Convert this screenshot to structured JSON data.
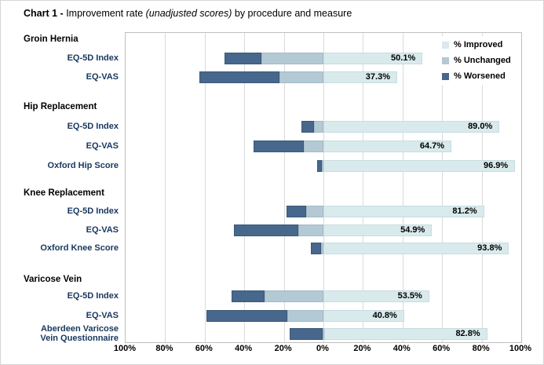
{
  "title": {
    "prefix": "Chart 1 - ",
    "main": "Improvement rate ",
    "italic": "(unadjusted scores)",
    "suffix": " by procedure and measure"
  },
  "legend": {
    "items": [
      {
        "label": "% Improved",
        "color": "#d9eaec"
      },
      {
        "label": "% Unchanged",
        "color": "#b3c9d4"
      },
      {
        "label": "% Worsened",
        "color": "#47688c"
      }
    ]
  },
  "colors": {
    "improved": "#d9eaec",
    "unchanged": "#b3c9d4",
    "worsened": "#47688c",
    "gridline": "#dadada",
    "plot_border": "#bfbfbf",
    "measure_label": "#17375e"
  },
  "axis": {
    "ticks": [
      "100%",
      "80%",
      "60%",
      "40%",
      "20%",
      "0%",
      "20%",
      "40%",
      "60%",
      "80%",
      "100%"
    ]
  },
  "chart_data": {
    "type": "bar",
    "orientation": "horizontal-diverging",
    "title": "Chart 1 - Improvement rate (unadjusted scores) by procedure and measure",
    "xlabel": "",
    "ylabel": "",
    "axis_range_pct": [
      -100,
      100
    ],
    "grid": true,
    "legend_position": "top-right",
    "legend": [
      "% Improved",
      "% Unchanged",
      "% Worsened"
    ],
    "note": "Worsened and Unchanged extend left of 0; Improved extends right of 0. Improved values are labelled on the chart; Unchanged/Worsened estimated from bar lengths.",
    "groups": [
      {
        "name": "Groin Hernia",
        "rows": [
          {
            "label": "EQ-5D Index",
            "improved": 50.1,
            "unchanged": 31.3,
            "worsened": 18.6,
            "improved_label": "50.1%"
          },
          {
            "label": "EQ-VAS",
            "improved": 37.3,
            "unchanged": 22.2,
            "worsened": 40.5,
            "improved_label": "37.3%"
          }
        ]
      },
      {
        "name": "Hip Replacement",
        "rows": [
          {
            "label": "EQ-5D Index",
            "improved": 89.0,
            "unchanged": 4.9,
            "worsened": 6.1,
            "improved_label": "89.0%"
          },
          {
            "label": "EQ-VAS",
            "improved": 64.7,
            "unchanged": 10.0,
            "worsened": 25.3,
            "improved_label": "64.7%"
          },
          {
            "label": "Oxford Hip Score",
            "improved": 96.9,
            "unchanged": 0.9,
            "worsened": 2.2,
            "improved_label": "96.9%"
          }
        ]
      },
      {
        "name": "Knee Replacement",
        "rows": [
          {
            "label": "EQ-5D Index",
            "improved": 81.2,
            "unchanged": 8.7,
            "worsened": 10.1,
            "improved_label": "81.2%"
          },
          {
            "label": "EQ-VAS",
            "improved": 54.9,
            "unchanged": 12.7,
            "worsened": 32.4,
            "improved_label": "54.9%"
          },
          {
            "label": "Oxford Knee Score",
            "improved": 93.8,
            "unchanged": 1.2,
            "worsened": 5.0,
            "improved_label": "93.8%"
          }
        ]
      },
      {
        "name": "Varicose Vein",
        "rows": [
          {
            "label": "EQ-5D Index",
            "improved": 53.5,
            "unchanged": 29.6,
            "worsened": 16.9,
            "improved_label": "53.5%"
          },
          {
            "label": "EQ-VAS",
            "improved": 40.8,
            "unchanged": 18.4,
            "worsened": 40.8,
            "improved_label": "40.8%"
          },
          {
            "label": "Aberdeen Varicose\nVein Questionnaire",
            "improved": 82.8,
            "unchanged": 0.5,
            "worsened": 16.7,
            "improved_label": "82.8%"
          }
        ]
      }
    ]
  }
}
